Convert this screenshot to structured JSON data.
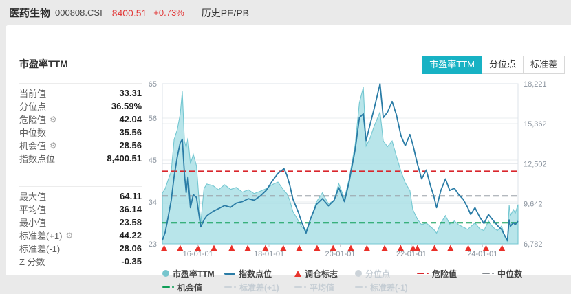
{
  "header": {
    "name": "医药生物",
    "code": "000808.CSI",
    "price": "8400.51",
    "change": "+0.73%",
    "menu": "历史PE/PB"
  },
  "panel_title": "市盈率TTM",
  "tabs": [
    {
      "label": "市盈率TTM",
      "active": true
    },
    {
      "label": "分位点",
      "active": false
    },
    {
      "label": "标准差",
      "active": false
    }
  ],
  "stats_top": [
    {
      "label": "当前值",
      "value": "33.31",
      "gear": false
    },
    {
      "label": "分位点",
      "value": "36.59%",
      "gear": false
    },
    {
      "label": "危险值",
      "value": "42.04",
      "gear": true
    },
    {
      "label": "中位数",
      "value": "35.56",
      "gear": false
    },
    {
      "label": "机会值",
      "value": "28.56",
      "gear": true
    },
    {
      "label": "指数点位",
      "value": "8,400.51",
      "gear": false
    }
  ],
  "stats_bottom": [
    {
      "label": "最大值",
      "value": "64.11",
      "gear": false
    },
    {
      "label": "平均值",
      "value": "36.14",
      "gear": false
    },
    {
      "label": "最小值",
      "value": "23.58",
      "gear": false
    },
    {
      "label": "标准差(+1)",
      "value": "44.22",
      "gear": true
    },
    {
      "label": "标准差(-1)",
      "value": "28.06",
      "gear": false
    },
    {
      "label": "Z 分数",
      "value": "-0.35",
      "gear": false
    }
  ],
  "chart_data": {
    "type": "area+line",
    "title": "市盈率TTM",
    "x_domain": [
      2015.0,
      2025.0
    ],
    "x_ticks": [
      {
        "t": 2016.0,
        "label": "16-01-01"
      },
      {
        "t": 2018.0,
        "label": "18-01-01"
      },
      {
        "t": 2020.0,
        "label": "20-01-01"
      },
      {
        "t": 2022.0,
        "label": "22-01-01"
      },
      {
        "t": 2024.0,
        "label": "24-01-01"
      }
    ],
    "left_axis": {
      "range": [
        23,
        65
      ],
      "ticks": [
        23,
        34,
        45,
        56,
        65
      ],
      "grid_ticks": [
        34,
        45,
        56
      ]
    },
    "right_axis": {
      "range": [
        6782,
        18221
      ],
      "values": [
        6782,
        9642,
        12502,
        15362,
        18221
      ],
      "labels": [
        "6,782",
        "9,642",
        "12,502",
        "15,362",
        "18,221"
      ],
      "grid_values": [
        9642,
        12502,
        15362
      ]
    },
    "x": [
      2015.0,
      2015.08,
      2015.17,
      2015.25,
      2015.33,
      2015.42,
      2015.5,
      2015.56,
      2015.62,
      2015.67,
      2015.72,
      2015.79,
      2015.87,
      2015.96,
      2016.08,
      2016.17,
      2016.25,
      2016.42,
      2016.58,
      2016.75,
      2016.92,
      2017.08,
      2017.25,
      2017.42,
      2017.58,
      2017.75,
      2017.92,
      2018.08,
      2018.25,
      2018.42,
      2018.5,
      2018.58,
      2018.67,
      2018.83,
      2018.92,
      2019.04,
      2019.17,
      2019.33,
      2019.5,
      2019.67,
      2019.83,
      2019.96,
      2020.12,
      2020.25,
      2020.42,
      2020.54,
      2020.65,
      2020.73,
      2020.83,
      2020.96,
      2021.12,
      2021.21,
      2021.33,
      2021.46,
      2021.58,
      2021.71,
      2021.83,
      2021.96,
      2022.04,
      2022.17,
      2022.29,
      2022.42,
      2022.54,
      2022.63,
      2022.71,
      2022.83,
      2022.96,
      2023.08,
      2023.21,
      2023.33,
      2023.46,
      2023.58,
      2023.67,
      2023.79,
      2023.92,
      2024.04,
      2024.17,
      2024.29,
      2024.42,
      2024.54,
      2024.62,
      2024.7,
      2024.75,
      2024.79,
      2024.87,
      2024.92,
      2025.0
    ],
    "series": [
      {
        "name": "市盈率TTM",
        "type": "area",
        "axis": "left",
        "fill": "#ace0e6",
        "stroke": "#74c7d1",
        "values": [
          36.3,
          37.5,
          40,
          42,
          50.4,
          53,
          57,
          63,
          50,
          48.3,
          50.8,
          44,
          46.5,
          43.5,
          28.4,
          37.5,
          38.7,
          38.3,
          37.2,
          38.5,
          37.3,
          37.8,
          36.6,
          37.2,
          36.2,
          36.8,
          37.5,
          38.5,
          39.2,
          37,
          36.2,
          34.5,
          31.5,
          29,
          27.5,
          26.5,
          29.5,
          34,
          36.4,
          33.5,
          34.5,
          38.8,
          34.9,
          40,
          49,
          60,
          64.11,
          48.7,
          50.5,
          54,
          57.6,
          50,
          48.5,
          50,
          46,
          42,
          39,
          37,
          32,
          29.5,
          28,
          28.5,
          27.5,
          26.8,
          25.8,
          28.5,
          30.4,
          28.2,
          29,
          28,
          27.4,
          26.8,
          27.5,
          28.5,
          27,
          26.5,
          29,
          27.4,
          26.5,
          27.7,
          25,
          23.58,
          33.1,
          30.5,
          32,
          31,
          33.31
        ]
      },
      {
        "name": "指数点位",
        "type": "line",
        "axis": "right",
        "stroke": "#2a7ca6",
        "values": [
          7030,
          7600,
          8800,
          9900,
          11600,
          13000,
          14000,
          14260,
          11800,
          10450,
          11570,
          9370,
          10300,
          10100,
          8000,
          8500,
          8790,
          9100,
          9300,
          9520,
          9400,
          9700,
          9800,
          10010,
          9900,
          10200,
          10600,
          11230,
          11820,
          12160,
          11700,
          11000,
          10000,
          9000,
          8300,
          7560,
          8600,
          9600,
          10010,
          9500,
          9900,
          10800,
          9800,
          11200,
          13500,
          15800,
          16073,
          14166,
          15200,
          16500,
          18221,
          15800,
          16200,
          16952,
          16000,
          14500,
          13800,
          14600,
          13900,
          12500,
          11420,
          12060,
          10930,
          10200,
          9370,
          10600,
          11420,
          10600,
          10760,
          10300,
          9960,
          9400,
          8880,
          9370,
          8700,
          8240,
          8880,
          8490,
          8100,
          7810,
          7400,
          7022,
          8490,
          8050,
          8300,
          8150,
          8400.51
        ]
      }
    ],
    "ref_lines": [
      {
        "name": "危险值",
        "value": 42.04,
        "color": "#d9262c"
      },
      {
        "name": "中位数",
        "value": 35.56,
        "color": "#9aa1a8"
      },
      {
        "name": "机会值",
        "value": 28.56,
        "color": "#0e9e57"
      }
    ],
    "markers": {
      "name": "调仓标志",
      "color": "#ea2f28",
      "x": [
        2015.05,
        2015.5,
        2016.0,
        2016.45,
        2016.95,
        2017.4,
        2017.9,
        2018.4,
        2018.85,
        2019.35,
        2019.8,
        2020.3,
        2020.75,
        2021.25,
        2021.7,
        2022.05,
        2022.17,
        2022.65,
        2023.1,
        2023.6,
        2024.1,
        2024.55
      ]
    }
  },
  "legend": {
    "rows": [
      [
        {
          "type": "dot",
          "color": "#76c5cd",
          "label": "市盈率TTM",
          "active": true
        },
        {
          "type": "line",
          "color": "#2a7ca6",
          "label": "指数点位",
          "active": true
        },
        {
          "type": "triangle",
          "color": "#e8352e",
          "label": "调仓标志",
          "active": true
        },
        {
          "type": "dot",
          "color": "#ccd3d9",
          "label": "分位点",
          "active": false
        },
        {
          "type": "dashdot",
          "color": "#d9262c",
          "label": "危险值",
          "active": true
        },
        {
          "type": "dashdot",
          "color": "#83888e",
          "label": "中位数",
          "active": true
        }
      ],
      [
        {
          "type": "dashdot",
          "color": "#0e9e57",
          "label": "机会值",
          "active": true
        },
        {
          "type": "dashdot",
          "color": "#ccd3d9",
          "label": "标准差(+1)",
          "active": false
        },
        {
          "type": "dashdot",
          "color": "#ccd3d9",
          "label": "平均值",
          "active": false
        },
        {
          "type": "dashdot",
          "color": "#ccd3d9",
          "label": "标准差(-1)",
          "active": false
        }
      ]
    ]
  },
  "colors": {
    "accent_teal": "#18b2c4",
    "up_red": "#e23b3b",
    "area_fill": "#ace0e6",
    "index_line": "#2a7ca6",
    "danger": "#d9262c",
    "median": "#9aa1a8",
    "opportunity": "#0e9e57",
    "marker": "#ea2f28"
  }
}
